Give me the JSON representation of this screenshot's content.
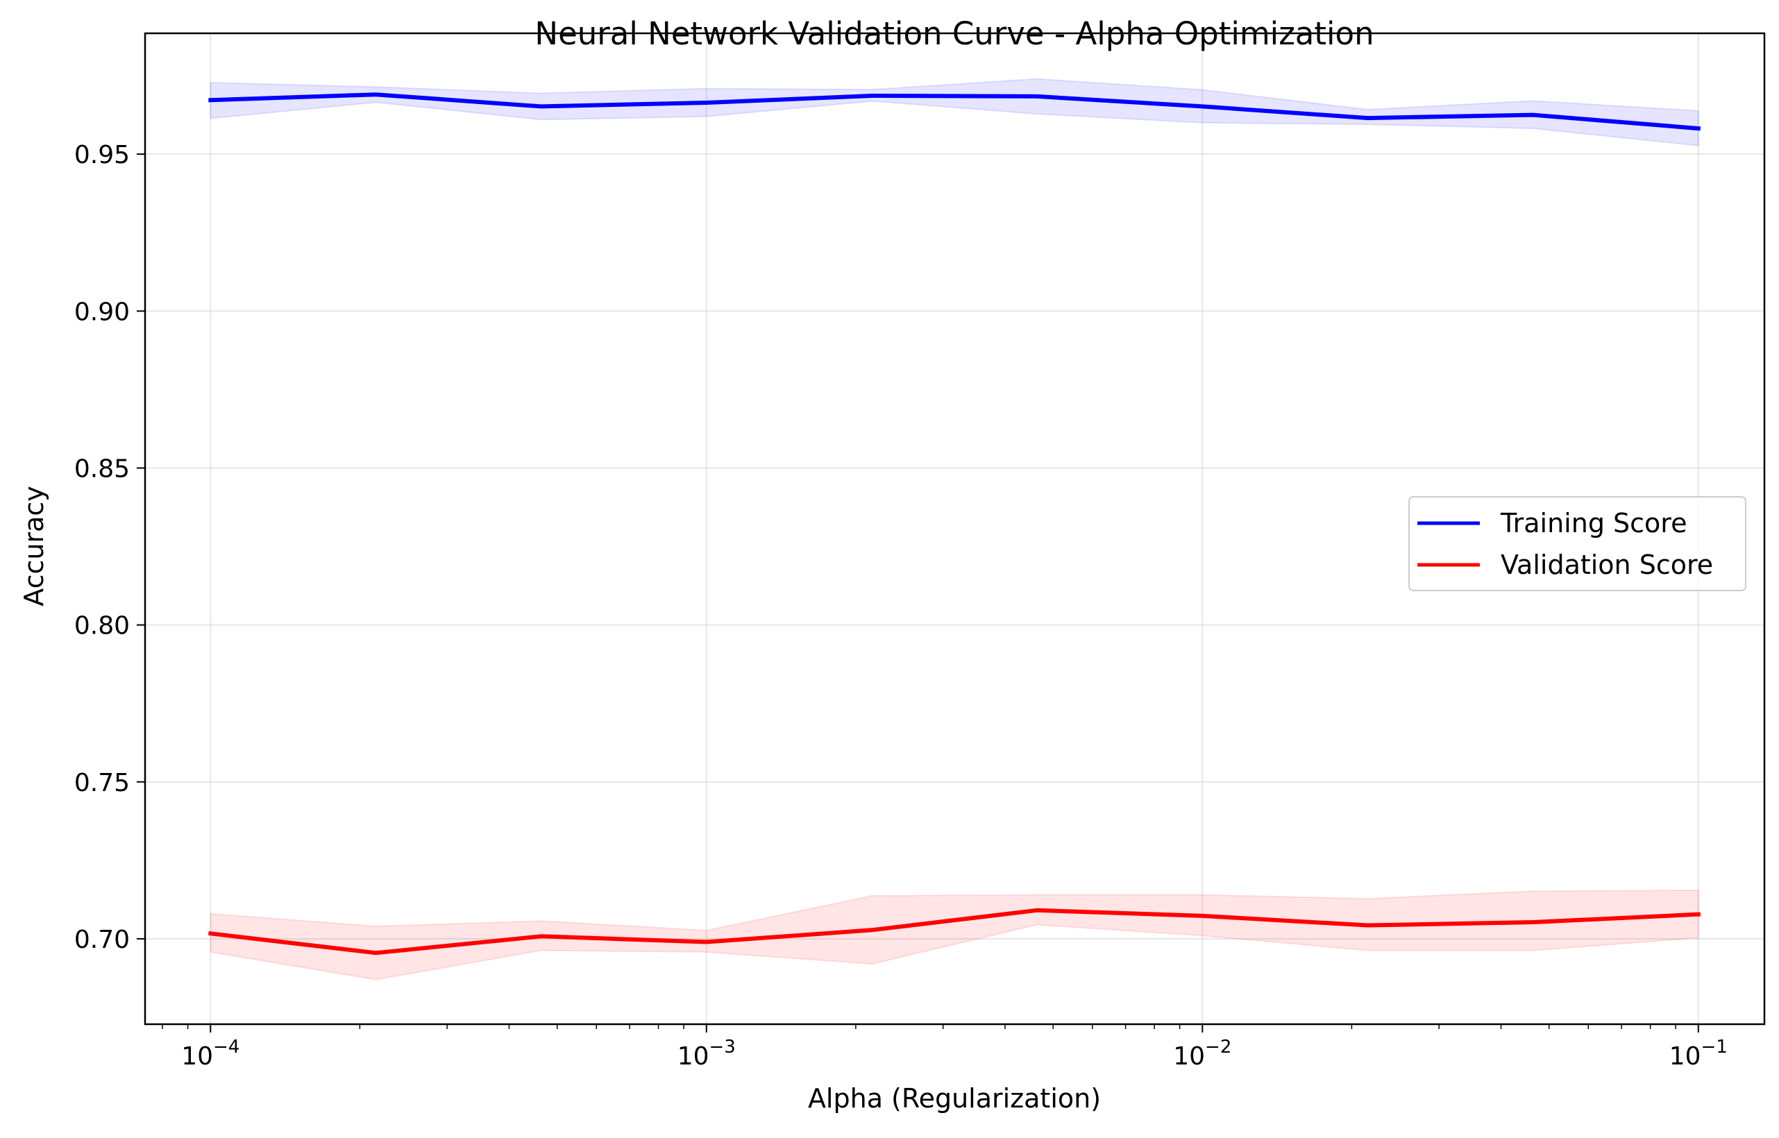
{
  "chart_data": {
    "type": "line",
    "title": "Neural Network Validation Curve - Alpha Optimization",
    "xlabel": "Alpha (Regularization)",
    "ylabel": "Accuracy",
    "x_scale": "log",
    "xlim": [
      7.38e-05,
      0.1359
    ],
    "ylim": [
      0.6728,
      0.9885
    ],
    "x": [
      0.0001,
      0.00021544,
      0.00046416,
      0.001,
      0.00215443,
      0.00464159,
      0.01,
      0.02154435,
      0.04641589,
      0.1
    ],
    "x_ticks": [
      {
        "value": 0.0001,
        "base": "10",
        "exponent": "−4"
      },
      {
        "value": 0.001,
        "base": "10",
        "exponent": "−3"
      },
      {
        "value": 0.01,
        "base": "10",
        "exponent": "−2"
      },
      {
        "value": 0.1,
        "base": "10",
        "exponent": "−1"
      }
    ],
    "y_ticks": [
      {
        "value": 0.7,
        "label": "0.70"
      },
      {
        "value": 0.75,
        "label": "0.75"
      },
      {
        "value": 0.8,
        "label": "0.80"
      },
      {
        "value": 0.85,
        "label": "0.85"
      },
      {
        "value": 0.9,
        "label": "0.90"
      },
      {
        "value": 0.95,
        "label": "0.95"
      }
    ],
    "grid": true,
    "legend_position": "center-right",
    "series": [
      {
        "name": "Training Score",
        "color": "#0000ff",
        "values": [
          0.9672,
          0.969,
          0.9652,
          0.9664,
          0.9686,
          0.9684,
          0.9652,
          0.9615,
          0.9625,
          0.9582
        ],
        "upper": [
          0.9728,
          0.9714,
          0.9694,
          0.9709,
          0.9706,
          0.974,
          0.9705,
          0.9642,
          0.967,
          0.9638
        ],
        "lower": [
          0.9614,
          0.9665,
          0.961,
          0.962,
          0.9669,
          0.9628,
          0.96,
          0.9595,
          0.9582,
          0.9527
        ]
      },
      {
        "name": "Validation Score",
        "color": "#ff0000",
        "values": [
          0.7017,
          0.6955,
          0.7008,
          0.699,
          0.7028,
          0.7091,
          0.7073,
          0.7043,
          0.7053,
          0.7078
        ],
        "upper": [
          0.708,
          0.704,
          0.7057,
          0.7027,
          0.7137,
          0.714,
          0.714,
          0.7128,
          0.7152,
          0.7155
        ],
        "lower": [
          0.6958,
          0.687,
          0.6963,
          0.6958,
          0.692,
          0.7045,
          0.701,
          0.6963,
          0.6963,
          0.7003
        ]
      }
    ]
  }
}
